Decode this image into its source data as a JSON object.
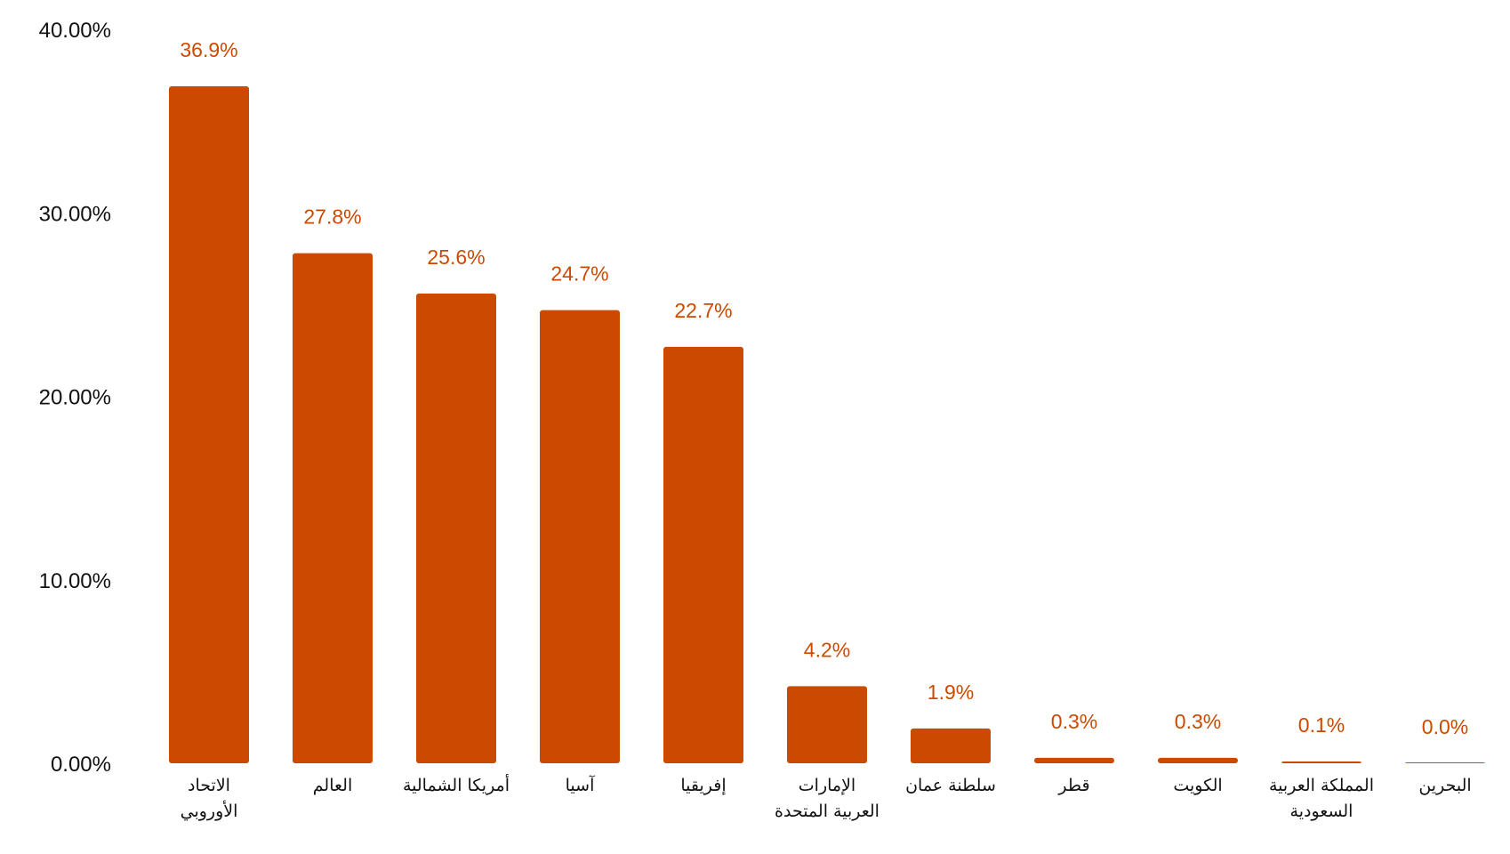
{
  "chart_data": {
    "type": "bar",
    "categories": [
      [
        "الاتحاد",
        "الأوروبي"
      ],
      [
        "العالم"
      ],
      [
        "أمريكا الشمالية"
      ],
      [
        "آسيا"
      ],
      [
        "إفريقيا"
      ],
      [
        "الإمارات",
        "العربية المتحدة"
      ],
      [
        "سلطنة عمان"
      ],
      [
        "قطر"
      ],
      [
        "الكويت"
      ],
      [
        "المملكة العربية",
        "السعودية"
      ],
      [
        "البحرين"
      ]
    ],
    "values": [
      36.9,
      27.8,
      25.6,
      24.7,
      22.7,
      4.2,
      1.9,
      0.3,
      0.3,
      0.1,
      0.0
    ],
    "data_labels": [
      "36.9%",
      "27.8%",
      "25.6%",
      "24.7%",
      "22.7%",
      "4.2%",
      "1.9%",
      "0.3%",
      "0.3%",
      "0.1%",
      "0.0%"
    ],
    "yticks": [
      0,
      10,
      20,
      30,
      40
    ],
    "ytick_labels": [
      "0.00%",
      "10.00%",
      "20.00%",
      "30.00%",
      "40.00%"
    ],
    "ylim": [
      0,
      40
    ],
    "grid": false,
    "legend": "none",
    "title": "",
    "xlabel": "",
    "ylabel": "",
    "colors": {
      "bar": "#cc4a00",
      "data_label": "#cc4a00",
      "axis_text": "#111111"
    }
  }
}
